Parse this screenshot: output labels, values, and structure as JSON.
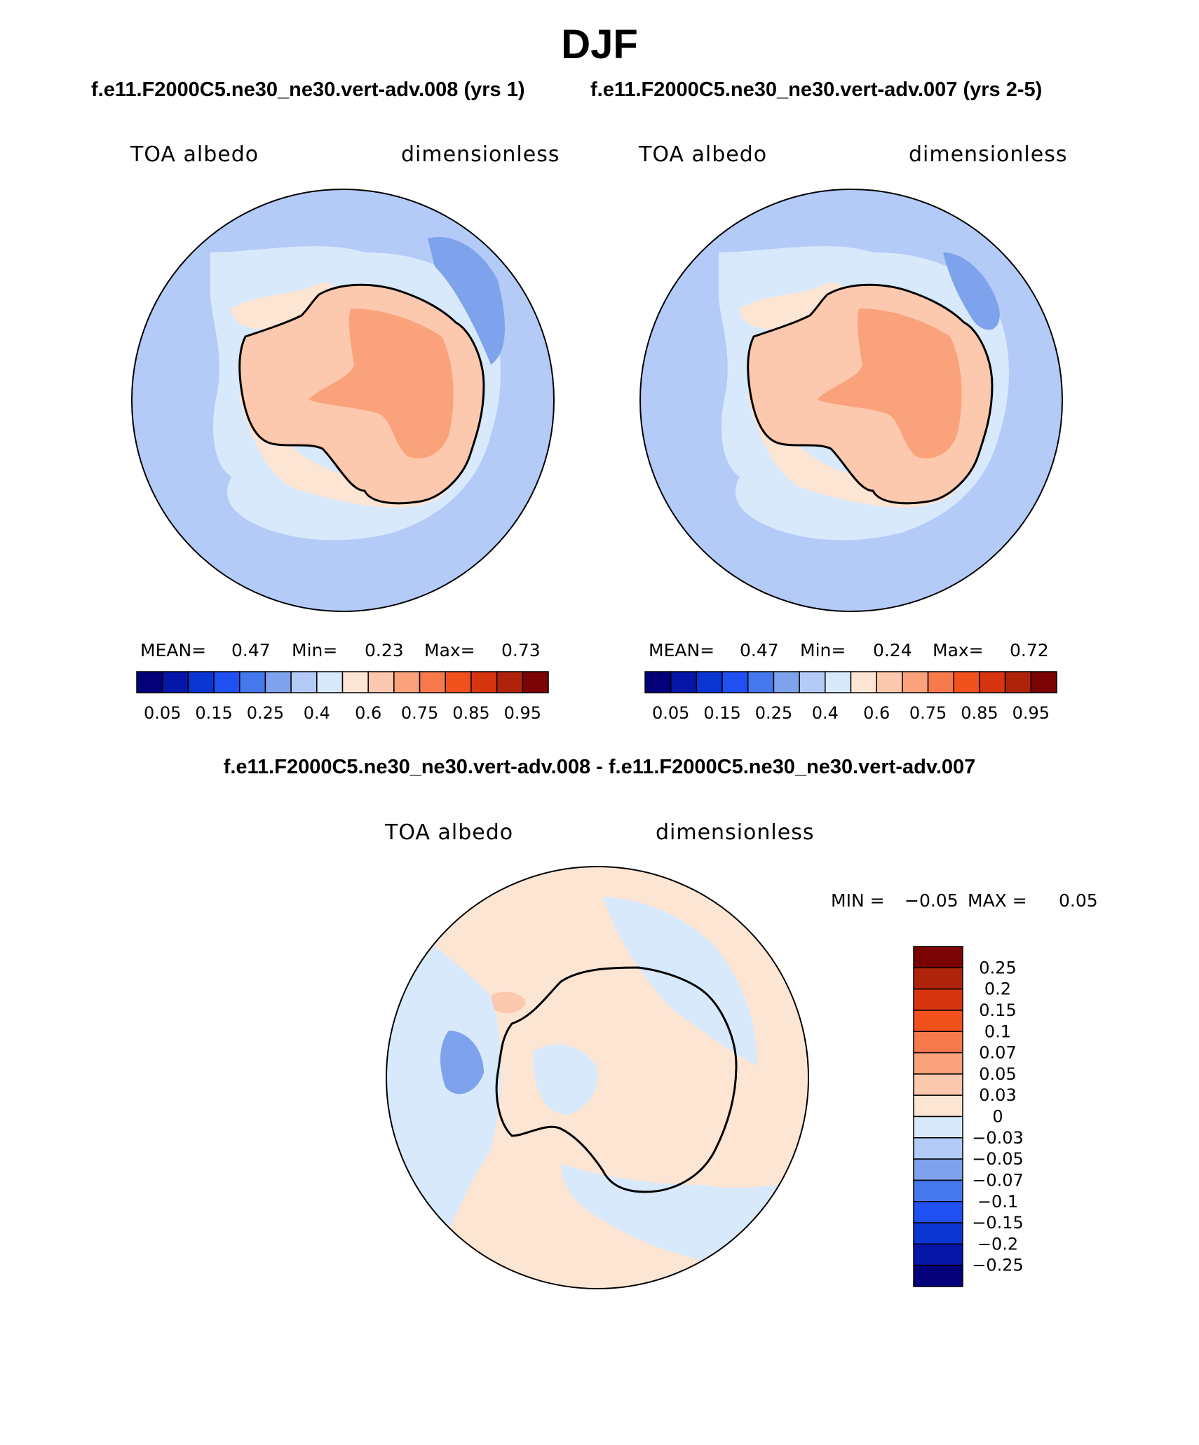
{
  "title": "DJF",
  "case1_title": "f.e11.F2000C5.ne30_ne30.vert-adv.008 (yrs 1)",
  "case2_title": "f.e11.F2000C5.ne30_ne30.vert-adv.007 (yrs 2-5)",
  "diff_title": "f.e11.F2000C5.ne30_ne30.vert-adv.008 - f.e11.F2000C5.ne30_ne30.vert-adv.007",
  "panels": [
    {
      "left_label": "TOA albedo",
      "right_label": "dimensionless",
      "mean_label": "MEAN=",
      "mean_value": "0.47",
      "min_label": "Min=",
      "min_value": "0.23",
      "max_label": "Max=",
      "max_value": "0.73"
    },
    {
      "left_label": "TOA albedo",
      "right_label": "dimensionless",
      "mean_label": "MEAN=",
      "mean_value": "0.47",
      "min_label": "Min=",
      "min_value": "0.24",
      "max_label": "Max=",
      "max_value": "0.72"
    },
    {
      "left_label": "TOA albedo",
      "right_label": "dimensionless",
      "min_label": "MIN =",
      "min_value": "−0.05",
      "max_label": "MAX =",
      "max_value": "0.05"
    }
  ],
  "chart_data": [
    {
      "type": "heatmap",
      "projection": "south polar stereographic",
      "field": "TOA albedo",
      "units": "dimensionless",
      "stats": {
        "mean": 0.47,
        "min": 0.23,
        "max": 0.73
      },
      "colorbar": {
        "levels": [
          0.05,
          0.1,
          0.15,
          0.2,
          0.25,
          0.3,
          0.4,
          0.5,
          0.6,
          0.7,
          0.75,
          0.8,
          0.85,
          0.9,
          0.95
        ],
        "tick_labels": [
          "0.05",
          "0.15",
          "0.25",
          "0.4",
          "0.6",
          "0.75",
          "0.85",
          "0.95"
        ],
        "colors": [
          "#04007a",
          "#0516a8",
          "#0a35d3",
          "#1e50f2",
          "#4478ec",
          "#7ea2ec",
          "#b4cbf8",
          "#d9e9fc",
          "#fde5d4",
          "#fcc8ae",
          "#f9a27c",
          "#f77a4d",
          "#f1511c",
          "#d73510",
          "#b0230b",
          "#7c0303"
        ]
      }
    },
    {
      "type": "heatmap",
      "projection": "south polar stereographic",
      "field": "TOA albedo",
      "units": "dimensionless",
      "stats": {
        "mean": 0.47,
        "min": 0.24,
        "max": 0.72
      },
      "colorbar": {
        "levels": [
          0.05,
          0.1,
          0.15,
          0.2,
          0.25,
          0.3,
          0.4,
          0.5,
          0.6,
          0.7,
          0.75,
          0.8,
          0.85,
          0.9,
          0.95
        ],
        "tick_labels": [
          "0.05",
          "0.15",
          "0.25",
          "0.4",
          "0.6",
          "0.75",
          "0.85",
          "0.95"
        ],
        "colors": [
          "#04007a",
          "#0516a8",
          "#0a35d3",
          "#1e50f2",
          "#4478ec",
          "#7ea2ec",
          "#b4cbf8",
          "#d9e9fc",
          "#fde5d4",
          "#fcc8ae",
          "#f9a27c",
          "#f77a4d",
          "#f1511c",
          "#d73510",
          "#b0230b",
          "#7c0303"
        ]
      }
    },
    {
      "type": "heatmap",
      "projection": "south polar stereographic",
      "field": "TOA albedo",
      "units": "dimensionless",
      "stats": {
        "min": -0.05,
        "max": 0.05
      },
      "colorbar": {
        "orientation": "vertical",
        "tick_labels_top_to_bottom": [
          "0.25",
          "0.2",
          "0.15",
          "0.1",
          "0.07",
          "0.05",
          "0.03",
          "0",
          "−0.03",
          "−0.05",
          "−0.07",
          "−0.1",
          "−0.15",
          "−0.2",
          "−0.25"
        ],
        "colors_top_to_bottom": [
          "#7c0303",
          "#b0230b",
          "#d73510",
          "#f1511c",
          "#f77a4d",
          "#f9a27c",
          "#fcc8ae",
          "#fde5d4",
          "#d9e9fc",
          "#b4cbf8",
          "#7ea2ec",
          "#4478ec",
          "#1e50f2",
          "#0a35d3",
          "#0516a8",
          "#04007a"
        ]
      }
    }
  ]
}
